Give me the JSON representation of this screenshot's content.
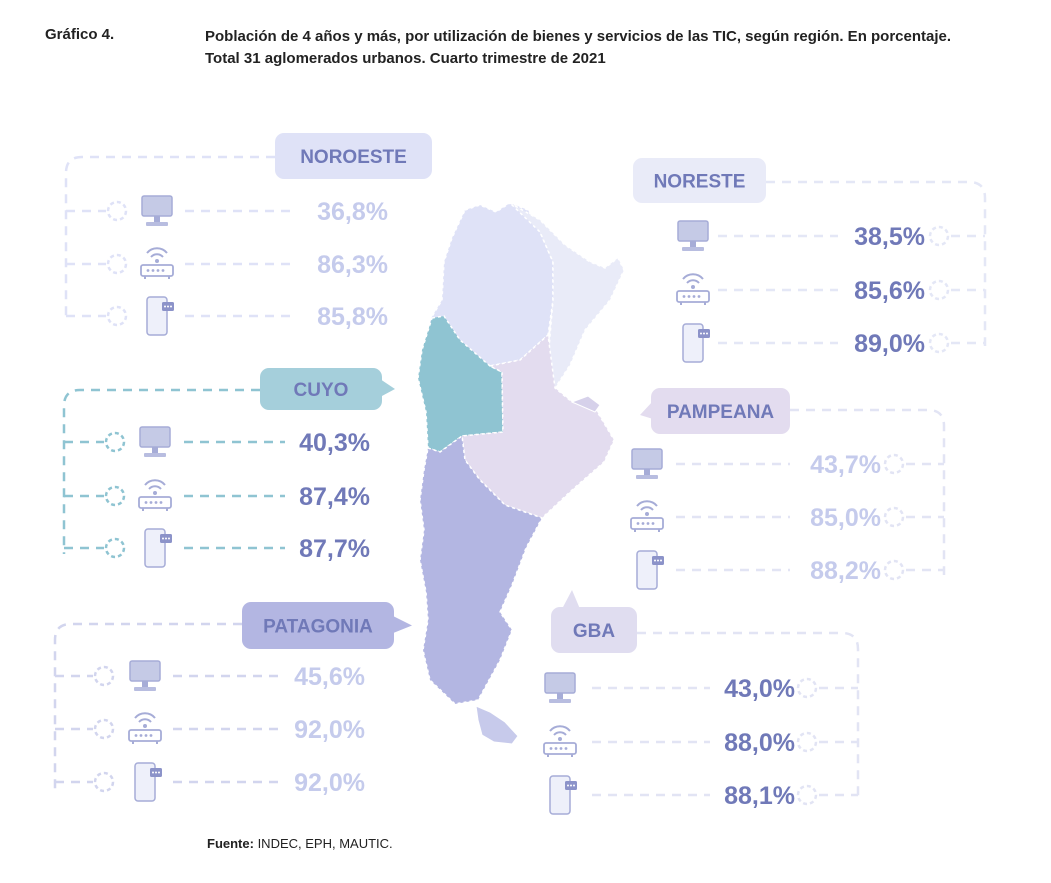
{
  "header": {
    "label": "Gráfico 4.",
    "title_line1": "Población de 4 años y más, por utilización de bienes y servicios de las TIC, según región. En porcentaje.",
    "title_line2": "Total 31 aglomerados urbanos. Cuarto trimestre de 2021"
  },
  "source": {
    "label": "Fuente:",
    "text": " INDEC, EPH, MAUTIC."
  },
  "icons": [
    "computer-icon",
    "wifi-router-icon",
    "smartphone-icon"
  ],
  "colors": {
    "value_text": "#7079b8",
    "cuyo": "#8fc4d2",
    "noroeste": "#dfe2f7",
    "noreste": "#e3e6f6",
    "pampeana": "#e3dcef",
    "gba": "#e0ddf0",
    "patagonia": "#b3b6e2"
  },
  "chart_data": {
    "type": "table",
    "categories": [
      "Computadora",
      "Internet",
      "Teléfono celular"
    ],
    "regions": [
      {
        "name": "NOROESTE",
        "values": [
          "36,8%",
          "86,3%",
          "85,8%"
        ]
      },
      {
        "name": "NORESTE",
        "values": [
          "38,5%",
          "85,6%",
          "89,0%"
        ]
      },
      {
        "name": "CUYO",
        "values": [
          "40,3%",
          "87,4%",
          "87,7%"
        ]
      },
      {
        "name": "PAMPEANA",
        "values": [
          "43,7%",
          "85,0%",
          "88,2%"
        ]
      },
      {
        "name": "PATAGONIA",
        "values": [
          "45,6%",
          "92,0%",
          "92,0%"
        ]
      },
      {
        "name": "GBA",
        "values": [
          "43,0%",
          "88,0%",
          "88,1%"
        ]
      }
    ]
  }
}
